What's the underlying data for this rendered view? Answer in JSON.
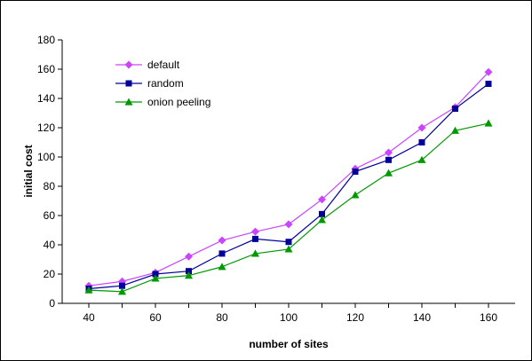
{
  "chart_data": {
    "type": "line",
    "title": "",
    "xlabel": "number of sites",
    "ylabel": "initial cost",
    "x": [
      40,
      50,
      60,
      70,
      80,
      90,
      100,
      110,
      120,
      130,
      140,
      150,
      160
    ],
    "x_ticks": [
      40,
      60,
      80,
      100,
      120,
      140,
      160
    ],
    "y_ticks": [
      0,
      20,
      40,
      60,
      80,
      100,
      120,
      140,
      160,
      180
    ],
    "ylim": [
      0,
      180
    ],
    "xlim": [
      40,
      160
    ],
    "grid": false,
    "legend_position": "top-left",
    "series": [
      {
        "name": "default",
        "color": "#CC44FF",
        "marker": "diamond",
        "values": [
          12,
          15,
          21,
          32,
          43,
          49,
          54,
          71,
          92,
          103,
          120,
          134,
          158
        ]
      },
      {
        "name": "random",
        "color": "#000099",
        "marker": "square",
        "values": [
          10,
          12,
          20,
          22,
          34,
          44,
          42,
          61,
          90,
          98,
          110,
          133,
          150
        ]
      },
      {
        "name": "onion peeling",
        "color": "#009900",
        "marker": "triangle",
        "values": [
          9,
          8,
          17,
          19,
          25,
          34,
          37,
          57,
          74,
          89,
          98,
          118,
          123
        ]
      }
    ]
  }
}
